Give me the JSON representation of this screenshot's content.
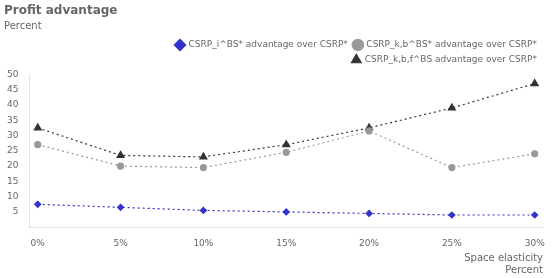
{
  "chart_data": {
    "type": "line",
    "title": "Profit advantage",
    "subtitle": "Percent",
    "xlabel": [
      "Space elasticity",
      "Percent"
    ],
    "x": [
      0,
      5,
      10,
      15,
      20,
      25,
      30
    ],
    "series": [
      {
        "name": "CSRP_i^BS* advantage over CSRP*",
        "color": "#3333cc",
        "marker": "diamond",
        "line_style": "dotted",
        "values": [
          7.5,
          6.5,
          5.5,
          5.0,
          4.5,
          4.0,
          4.0
        ]
      },
      {
        "name": "CSRP_k,b^BS* advantage over CSRP*",
        "color": "#999999",
        "marker": "circle",
        "line_style": "dotted",
        "values": [
          27.0,
          20.0,
          19.5,
          24.5,
          31.5,
          19.5,
          24.0
        ]
      },
      {
        "name": "CSRP_k,b,f^BS advantage over CSRP*",
        "color": "#333333",
        "marker": "triangle",
        "line_style": "dotted",
        "values": [
          32.5,
          23.5,
          23.0,
          27.0,
          32.5,
          39.0,
          47.0
        ]
      }
    ],
    "xlim": [
      -0.5,
      30.5
    ],
    "xticks": [
      {
        "value": 0,
        "label": "0%"
      },
      {
        "value": 5,
        "label": "5%"
      },
      {
        "value": 10,
        "label": "10%"
      },
      {
        "value": 15,
        "label": "15%"
      },
      {
        "value": 20,
        "label": "20%"
      },
      {
        "value": 25,
        "label": "25%"
      },
      {
        "value": 30,
        "label": "30%"
      }
    ],
    "ylim": [
      0,
      50
    ],
    "yticks": [
      5,
      10,
      15,
      20,
      25,
      30,
      35,
      40,
      45,
      50
    ],
    "grid": false,
    "legend": "upper right"
  }
}
